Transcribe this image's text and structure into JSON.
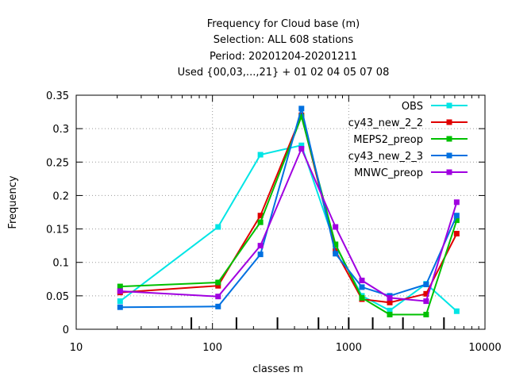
{
  "chart_data": {
    "type": "line",
    "title_lines": [
      "Frequency  for Cloud base (m)",
      "Selection: ALL    608 stations",
      "Period: 20201204-20201211",
      "Used {00,03,...,21} + 01 02 04 05 07 08"
    ],
    "xlabel": "classes m",
    "ylabel": "Frequency",
    "x_scale": "log",
    "xlim": [
      10,
      10000
    ],
    "ylim": [
      0,
      0.35
    ],
    "x_ticks": [
      {
        "value": 10,
        "label": "10"
      },
      {
        "value": 100,
        "label": "100"
      },
      {
        "value": 1000,
        "label": "1000"
      },
      {
        "value": 10000,
        "label": "10000"
      }
    ],
    "y_ticks": [
      {
        "value": 0,
        "label": "0"
      },
      {
        "value": 0.05,
        "label": "0.05"
      },
      {
        "value": 0.1,
        "label": "0.1"
      },
      {
        "value": 0.15,
        "label": "0.15"
      },
      {
        "value": 0.2,
        "label": "0.2"
      },
      {
        "value": 0.25,
        "label": "0.25"
      },
      {
        "value": 0.3,
        "label": "0.3"
      },
      {
        "value": 0.35,
        "label": "0.35"
      }
    ],
    "class_boundaries": [
      70,
      150,
      300,
      600,
      1000,
      1500,
      2500,
      5000
    ],
    "grid": true,
    "legend_position": "top-right",
    "x": [
      21,
      110,
      225,
      450,
      800,
      1250,
      2000,
      3700,
      6200
    ],
    "series": [
      {
        "name": "OBS",
        "color": "#00e5e5",
        "values": [
          0.042,
          0.153,
          0.261,
          0.275,
          0.125,
          0.05,
          0.028,
          0.068,
          0.027
        ]
      },
      {
        "name": "cy43_new_2_2",
        "color": "#e00000",
        "values": [
          0.055,
          0.065,
          0.17,
          0.32,
          0.117,
          0.045,
          0.04,
          0.053,
          0.143
        ]
      },
      {
        "name": "MEPS2_preop",
        "color": "#00c000",
        "values": [
          0.064,
          0.07,
          0.16,
          0.318,
          0.127,
          0.047,
          0.022,
          0.022,
          0.163
        ]
      },
      {
        "name": "cy43_new_2_3",
        "color": "#0070e0",
        "values": [
          0.033,
          0.034,
          0.112,
          0.33,
          0.113,
          0.063,
          0.05,
          0.067,
          0.17
        ]
      },
      {
        "name": "MNWC_preop",
        "color": "#a000e0",
        "values": [
          0.057,
          0.049,
          0.125,
          0.27,
          0.153,
          0.073,
          0.047,
          0.042,
          0.19
        ]
      }
    ]
  }
}
